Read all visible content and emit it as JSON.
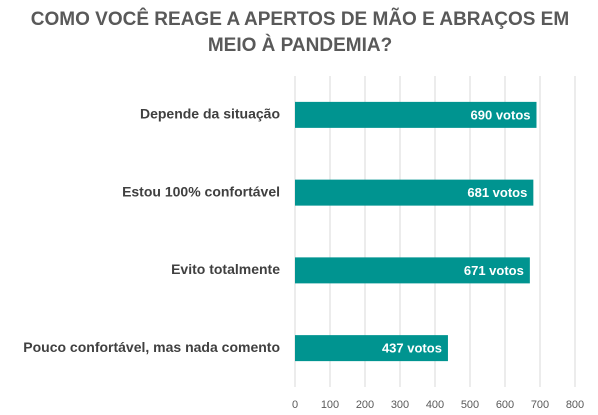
{
  "chart_data": {
    "type": "bar",
    "orientation": "horizontal",
    "title": [
      "COMO VOCÊ REAGE A APERTOS DE MÃO E ABRAÇOS EM",
      "MEIO À PANDEMIA?"
    ],
    "categories": [
      "Depende da situação",
      "Estou 100% confortável",
      "Evito totalmente",
      "Pouco confortável, mas nada comento"
    ],
    "values": [
      690,
      681,
      671,
      437
    ],
    "value_labels": [
      "690 votos",
      "681 votos",
      "671 votos",
      "437 votos"
    ],
    "color": "#009490",
    "xlim": [
      0,
      800
    ],
    "xticks": [
      0,
      100,
      200,
      300,
      400,
      500,
      600,
      700,
      800
    ],
    "grid": true
  }
}
